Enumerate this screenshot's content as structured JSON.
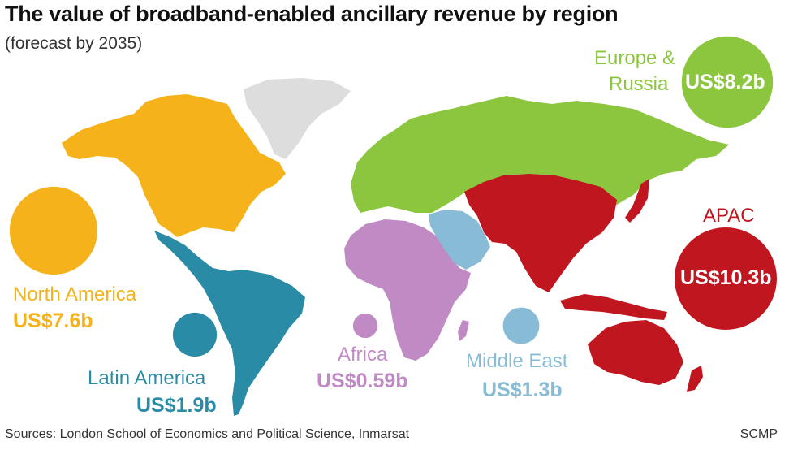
{
  "title": "The value of broadband-enabled ancillary revenue by region",
  "subtitle": "(forecast by 2035)",
  "source": "Sources: London School of Economics and Political Science, Inmarsat",
  "credit": "SCMP",
  "colors": {
    "north_america": "#f5b21a",
    "latin_america": "#2a8ba6",
    "europe_russia": "#8cc63f",
    "africa": "#c08ac4",
    "middle_east": "#88bcd6",
    "apac": "#c0161f",
    "greenland": "#dddddd"
  },
  "chart_data": {
    "type": "bubble-map",
    "title": "The value of broadband-enabled ancillary revenue by region",
    "subtitle": "(forecast by 2035)",
    "unit": "US$ billion",
    "regions": [
      {
        "key": "north_america",
        "name": "North America",
        "value": 7.6,
        "label": "US$7.6b"
      },
      {
        "key": "latin_america",
        "name": "Latin America",
        "value": 1.9,
        "label": "US$1.9b"
      },
      {
        "key": "europe_russia",
        "name": "Europe & Russia",
        "value": 8.2,
        "label": "US$8.2b"
      },
      {
        "key": "africa",
        "name": "Africa",
        "value": 0.59,
        "label": "US$0.59b"
      },
      {
        "key": "middle_east",
        "name": "Middle East",
        "value": 1.3,
        "label": "US$1.3b"
      },
      {
        "key": "apac",
        "name": "APAC",
        "value": 10.3,
        "label": "US$10.3b"
      }
    ]
  }
}
